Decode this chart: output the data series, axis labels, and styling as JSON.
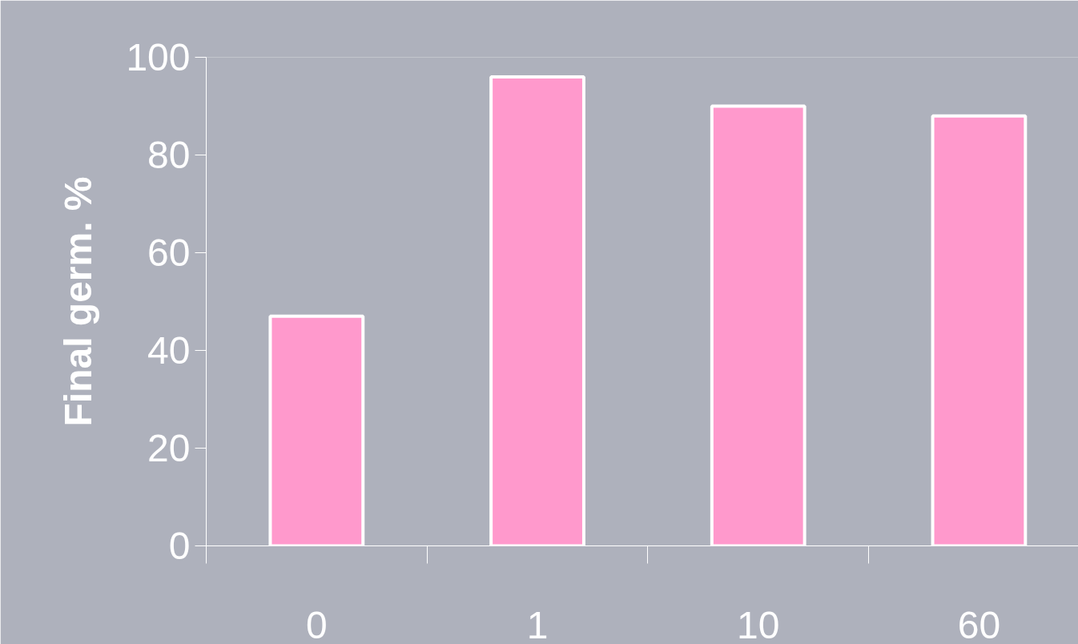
{
  "chart_data": {
    "type": "bar",
    "ylabel": "Final germ. %",
    "categories": [
      "0",
      "1",
      "10",
      "60"
    ],
    "values": [
      47,
      96,
      90,
      88
    ],
    "color": "#ff99cc",
    "ylim": [
      0,
      100
    ],
    "yticks": [
      0,
      20,
      40,
      60,
      80,
      100
    ],
    "grid": false
  }
}
